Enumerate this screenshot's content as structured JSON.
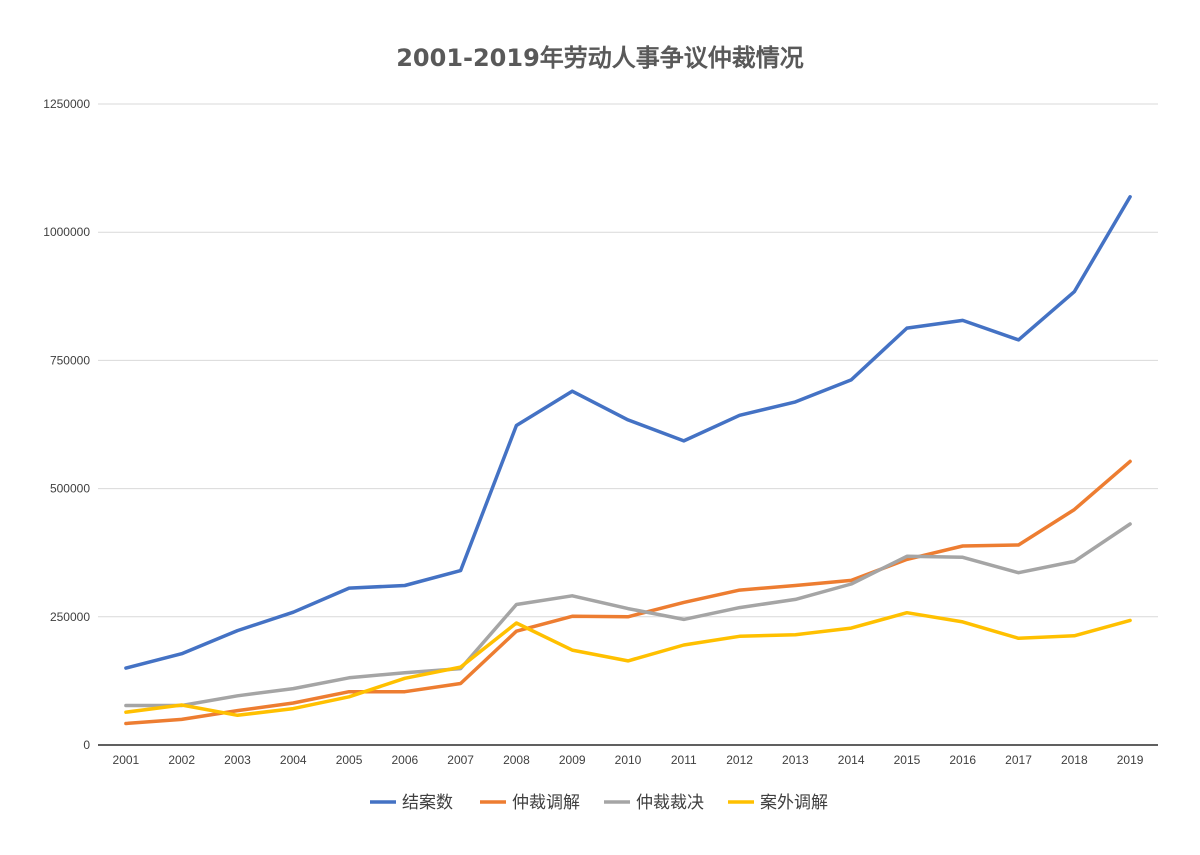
{
  "chart_data": {
    "type": "line",
    "title": "2001-2019年劳动人事争议仲裁情况",
    "xlabel": "",
    "ylabel": "",
    "x": [
      "2001",
      "2002",
      "2003",
      "2004",
      "2005",
      "2006",
      "2007",
      "2008",
      "2009",
      "2010",
      "2011",
      "2012",
      "2013",
      "2014",
      "2015",
      "2016",
      "2017",
      "2018",
      "2019"
    ],
    "ylim": [
      0,
      1250000
    ],
    "yticks": [
      0,
      250000,
      500000,
      750000,
      1000000,
      1250000
    ],
    "ytick_labels": [
      "0",
      "250000",
      "500000",
      "750000",
      "1000000",
      "1250000"
    ],
    "grid": true,
    "legend_position": "bottom",
    "series": [
      {
        "name": "结案数",
        "color": "#4472C4",
        "values": [
          150000,
          178000,
          223000,
          259000,
          306000,
          311000,
          340000,
          623000,
          690000,
          634000,
          593000,
          643000,
          669000,
          712000,
          813000,
          828000,
          790000,
          884000,
          1069000
        ]
      },
      {
        "name": "仲裁调解",
        "color": "#ED7D31",
        "values": [
          42000,
          50000,
          67000,
          82000,
          104000,
          104000,
          120000,
          222000,
          251000,
          250000,
          278000,
          302000,
          311000,
          321000,
          362000,
          388000,
          390000,
          459000,
          553000
        ]
      },
      {
        "name": "仲裁裁决",
        "color": "#A5A5A5",
        "values": [
          77000,
          77000,
          96000,
          110000,
          131000,
          141000,
          149000,
          274000,
          291000,
          266000,
          245000,
          268000,
          284000,
          314000,
          368000,
          366000,
          336000,
          358000,
          431000
        ]
      },
      {
        "name": "案外调解",
        "color": "#FFC000",
        "values": [
          64000,
          78000,
          58000,
          71000,
          94000,
          130000,
          152000,
          238000,
          185000,
          164000,
          195000,
          212000,
          215000,
          228000,
          258000,
          240000,
          208000,
          213000,
          243000
        ]
      }
    ]
  }
}
